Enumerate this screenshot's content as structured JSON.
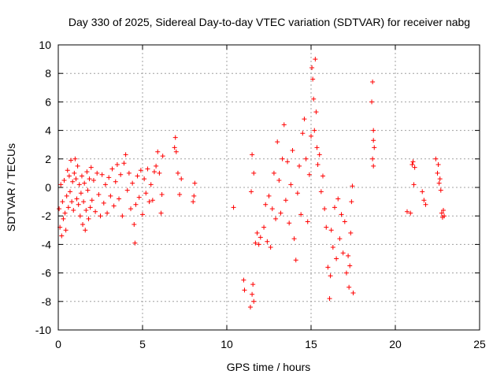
{
  "chart_data": {
    "type": "scatter",
    "title": "Day 330 of 2025, Sidereal Day-to-day VTEC variation (SDTVAR) for receiver nabg",
    "xlabel": "GPS time / hours",
    "ylabel": "SDTVAR / TECUs",
    "xlim": [
      0,
      25
    ],
    "ylim": [
      -10,
      10
    ],
    "xticks": [
      0,
      5,
      10,
      15,
      20,
      25
    ],
    "yticks": [
      -10,
      -8,
      -6,
      -4,
      -2,
      0,
      2,
      4,
      6,
      8,
      10
    ],
    "grid": true,
    "marker": "+",
    "color": "#ff0000",
    "series": [
      {
        "name": "SDTVAR",
        "points": [
          [
            0.05,
            -1.5
          ],
          [
            0.1,
            -2.8
          ],
          [
            0.15,
            0.2
          ],
          [
            0.2,
            -3.4
          ],
          [
            0.25,
            -1.0
          ],
          [
            0.3,
            -2.2
          ],
          [
            0.35,
            0.5
          ],
          [
            0.4,
            -1.8
          ],
          [
            0.45,
            -3.0
          ],
          [
            0.5,
            -0.6
          ],
          [
            0.55,
            1.2
          ],
          [
            0.6,
            -1.4
          ],
          [
            0.65,
            0.8
          ],
          [
            0.7,
            -0.3
          ],
          [
            0.75,
            1.9
          ],
          [
            0.8,
            -1.0
          ],
          [
            0.85,
            0.4
          ],
          [
            0.9,
            -1.6
          ],
          [
            0.95,
            1.0
          ],
          [
            1.0,
            2.0
          ],
          [
            1.05,
            0.6
          ],
          [
            1.1,
            -0.8
          ],
          [
            1.15,
            1.5
          ],
          [
            1.2,
            -1.2
          ],
          [
            1.25,
            0.2
          ],
          [
            1.3,
            -2.0
          ],
          [
            1.35,
            -0.4
          ],
          [
            1.4,
            0.8
          ],
          [
            1.45,
            -2.6
          ],
          [
            1.5,
            -1.0
          ],
          [
            1.55,
            0.3
          ],
          [
            1.6,
            -3.0
          ],
          [
            1.65,
            -1.6
          ],
          [
            1.7,
            1.1
          ],
          [
            1.75,
            -0.2
          ],
          [
            1.8,
            -2.2
          ],
          [
            1.85,
            0.6
          ],
          [
            1.9,
            -1.4
          ],
          [
            1.95,
            1.4
          ],
          [
            2.0,
            -0.9
          ],
          [
            2.1,
            0.5
          ],
          [
            2.2,
            -1.7
          ],
          [
            2.3,
            1.0
          ],
          [
            2.4,
            -0.5
          ],
          [
            2.5,
            -2.0
          ],
          [
            2.6,
            0.9
          ],
          [
            2.7,
            -1.1
          ],
          [
            2.8,
            0.2
          ],
          [
            2.9,
            -1.8
          ],
          [
            3.0,
            0.7
          ],
          [
            3.1,
            -0.6
          ],
          [
            3.2,
            1.3
          ],
          [
            3.3,
            -1.3
          ],
          [
            3.4,
            0.4
          ],
          [
            3.5,
            1.6
          ],
          [
            3.6,
            -0.8
          ],
          [
            3.7,
            0.9
          ],
          [
            3.8,
            -2.0
          ],
          [
            3.9,
            1.7
          ],
          [
            4.0,
            2.3
          ],
          [
            4.1,
            -0.2
          ],
          [
            4.2,
            1.0
          ],
          [
            4.3,
            -1.5
          ],
          [
            4.4,
            0.3
          ],
          [
            4.5,
            -2.6
          ],
          [
            4.55,
            -3.9
          ],
          [
            4.6,
            -1.2
          ],
          [
            4.7,
            0.8
          ],
          [
            4.8,
            -0.7
          ],
          [
            4.9,
            1.2
          ],
          [
            5.0,
            -1.9
          ],
          [
            5.1,
            0.6
          ],
          [
            5.2,
            -0.4
          ],
          [
            5.3,
            1.3
          ],
          [
            5.4,
            -1.0
          ],
          [
            5.5,
            0.2
          ],
          [
            5.6,
            -0.9
          ],
          [
            5.7,
            1.1
          ],
          [
            5.8,
            1.5
          ],
          [
            5.9,
            2.5
          ],
          [
            6.0,
            1.0
          ],
          [
            6.1,
            -1.8
          ],
          [
            6.15,
            -0.5
          ],
          [
            6.2,
            2.2
          ],
          [
            6.9,
            2.8
          ],
          [
            6.95,
            3.5
          ],
          [
            7.0,
            2.5
          ],
          [
            7.1,
            1.0
          ],
          [
            7.2,
            -0.5
          ],
          [
            7.3,
            0.6
          ],
          [
            8.0,
            -1.0
          ],
          [
            8.05,
            -0.6
          ],
          [
            8.1,
            0.3
          ],
          [
            10.4,
            -1.4
          ],
          [
            11.0,
            -6.5
          ],
          [
            11.05,
            -7.2
          ],
          [
            11.4,
            -8.4
          ],
          [
            11.5,
            -7.5
          ],
          [
            11.55,
            -6.8
          ],
          [
            11.6,
            -8.0
          ],
          [
            11.45,
            -0.3
          ],
          [
            11.5,
            2.3
          ],
          [
            11.6,
            1.0
          ],
          [
            11.7,
            -3.9
          ],
          [
            11.8,
            -3.2
          ],
          [
            11.9,
            -4.0
          ],
          [
            12.0,
            -3.5
          ],
          [
            12.2,
            -2.8
          ],
          [
            12.3,
            -1.2
          ],
          [
            12.4,
            -3.8
          ],
          [
            12.5,
            -0.6
          ],
          [
            12.6,
            -4.2
          ],
          [
            12.7,
            -1.5
          ],
          [
            12.8,
            1.0
          ],
          [
            12.9,
            -2.2
          ],
          [
            13.0,
            3.2
          ],
          [
            13.1,
            0.5
          ],
          [
            13.2,
            -1.8
          ],
          [
            13.3,
            2.0
          ],
          [
            13.4,
            4.4
          ],
          [
            13.5,
            -0.9
          ],
          [
            13.6,
            1.8
          ],
          [
            13.7,
            -2.5
          ],
          [
            13.8,
            0.2
          ],
          [
            13.9,
            2.6
          ],
          [
            14.0,
            -3.6
          ],
          [
            14.1,
            -5.1
          ],
          [
            14.2,
            -0.4
          ],
          [
            14.3,
            1.5
          ],
          [
            14.4,
            -1.9
          ],
          [
            14.5,
            3.8
          ],
          [
            14.6,
            4.8
          ],
          [
            14.7,
            2.0
          ],
          [
            14.8,
            -2.4
          ],
          [
            14.9,
            0.9
          ],
          [
            15.0,
            3.6
          ],
          [
            15.05,
            8.4
          ],
          [
            15.1,
            7.6
          ],
          [
            15.15,
            6.2
          ],
          [
            15.2,
            4.0
          ],
          [
            15.25,
            9.0
          ],
          [
            15.3,
            5.3
          ],
          [
            15.35,
            2.8
          ],
          [
            15.4,
            1.6
          ],
          [
            15.5,
            2.3
          ],
          [
            15.6,
            -0.3
          ],
          [
            15.7,
            0.8
          ],
          [
            15.8,
            -1.5
          ],
          [
            15.9,
            -2.8
          ],
          [
            16.0,
            -5.6
          ],
          [
            16.1,
            -7.8
          ],
          [
            16.15,
            -6.2
          ],
          [
            16.2,
            -3.0
          ],
          [
            16.3,
            -4.2
          ],
          [
            16.4,
            -1.4
          ],
          [
            16.5,
            -5.0
          ],
          [
            16.6,
            -0.8
          ],
          [
            16.7,
            -3.6
          ],
          [
            16.8,
            -1.9
          ],
          [
            16.9,
            -4.6
          ],
          [
            17.0,
            -2.4
          ],
          [
            17.1,
            -6.0
          ],
          [
            17.2,
            -4.8
          ],
          [
            17.25,
            -7.0
          ],
          [
            17.3,
            -5.5
          ],
          [
            17.35,
            -3.2
          ],
          [
            17.4,
            -1.0
          ],
          [
            17.45,
            0.1
          ],
          [
            17.5,
            -7.4
          ],
          [
            18.6,
            6.0
          ],
          [
            18.65,
            7.4
          ],
          [
            18.7,
            4.0
          ],
          [
            18.75,
            2.8
          ],
          [
            18.7,
            1.5
          ],
          [
            18.65,
            2.0
          ],
          [
            18.7,
            3.3
          ],
          [
            20.7,
            -1.7
          ],
          [
            20.9,
            -1.8
          ],
          [
            21.0,
            1.6
          ],
          [
            21.05,
            1.8
          ],
          [
            21.1,
            0.2
          ],
          [
            21.15,
            1.4
          ],
          [
            21.6,
            -0.3
          ],
          [
            21.7,
            -0.9
          ],
          [
            21.8,
            -1.2
          ],
          [
            22.4,
            2.0
          ],
          [
            22.5,
            1.0
          ],
          [
            22.55,
            1.6
          ],
          [
            22.6,
            0.3
          ],
          [
            22.65,
            0.6
          ],
          [
            22.7,
            -0.2
          ],
          [
            22.75,
            -1.8
          ],
          [
            22.8,
            -2.1
          ],
          [
            22.85,
            -1.6
          ],
          [
            22.9,
            -2.0
          ]
        ]
      }
    ]
  }
}
